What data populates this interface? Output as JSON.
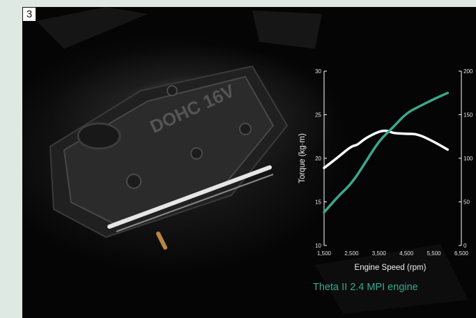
{
  "badge": "3",
  "engine_cover_text": "DOHC 16V",
  "caption": "Theta II 2.4 MPI engine",
  "colors": {
    "torque": "#ffffff",
    "power": "#3aa88f",
    "caption": "#3aa88f"
  },
  "chart_data": {
    "type": "line",
    "xlabel": "Engine Speed (rpm)",
    "ylabel": "Torque (kg·m)",
    "x_ticks": [
      "1,500",
      "2,500",
      "3,500",
      "4,500",
      "5,500",
      "6,500"
    ],
    "y_ticks_left": [
      "10",
      "15",
      "20",
      "25",
      "30"
    ],
    "y_ticks_right": [
      "0",
      "50",
      "100",
      "150",
      "200"
    ],
    "xlim": [
      1500,
      6500
    ],
    "ylim_left": [
      10,
      30
    ],
    "ylim_right": [
      0,
      200
    ],
    "grid": false,
    "series": [
      {
        "axis": "left",
        "color": "#ffffff",
        "x": [
          1500,
          2000,
          2500,
          2700,
          3000,
          3500,
          3800,
          4000,
          4500,
          4900,
          5500,
          6000
        ],
        "values": [
          18.9,
          20.1,
          21.4,
          21.5,
          22.3,
          23.1,
          23.2,
          22.9,
          22.8,
          22.8,
          21.9,
          21.0
        ]
      },
      {
        "axis": "right",
        "color": "#3aa88f",
        "x": [
          1500,
          2000,
          2500,
          3000,
          3500,
          4000,
          4500,
          5000,
          5500,
          6000
        ],
        "values": [
          38,
          56,
          71,
          95,
          120,
          135,
          152,
          160,
          168,
          175
        ]
      }
    ]
  }
}
